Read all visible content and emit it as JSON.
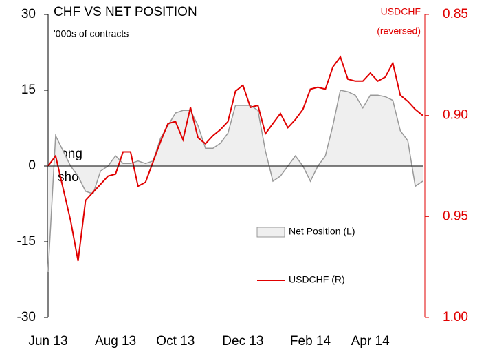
{
  "chart_data": {
    "type": "line",
    "title": "CHF VS NET POSITION",
    "subtitle": "'000s of contracts",
    "y2label": [
      "USDCHF",
      "(reversed)"
    ],
    "annotations": [
      "long",
      "short"
    ],
    "categories": [
      "Jun 13",
      null,
      null,
      null,
      null,
      null,
      null,
      null,
      null,
      "Aug 13",
      null,
      null,
      null,
      null,
      null,
      null,
      null,
      "Oct 13",
      null,
      null,
      null,
      null,
      null,
      null,
      null,
      null,
      "Dec 13",
      null,
      null,
      null,
      null,
      null,
      null,
      null,
      null,
      "Feb 14",
      null,
      null,
      null,
      null,
      null,
      null,
      null,
      "Apr 14",
      null,
      null,
      null,
      null,
      null,
      null,
      null
    ],
    "series": [
      {
        "name": "Net Position (L)",
        "color": "#999999",
        "fill": "#efefef",
        "axis": "y",
        "values": [
          -21,
          6,
          3,
          0,
          -2,
          -5,
          -5.5,
          -1,
          0,
          2,
          0.5,
          0.5,
          1,
          0.5,
          1,
          5.5,
          8,
          10.5,
          11,
          11,
          8,
          3.5,
          3.5,
          4.5,
          6.5,
          12,
          12,
          12,
          11,
          3,
          -3,
          -2,
          0,
          2,
          0,
          -3,
          0,
          2,
          8,
          15,
          14.7,
          14,
          11.5,
          14,
          14,
          13.7,
          13,
          7,
          5,
          -4,
          -3
        ]
      },
      {
        "name": "USDCHF (R)",
        "color": "#e00000",
        "axis": "y2",
        "values": [
          0.925,
          0.92,
          0.936,
          0.952,
          0.972,
          0.942,
          0.938,
          0.934,
          0.93,
          0.929,
          0.918,
          0.918,
          0.935,
          0.933,
          0.923,
          0.913,
          0.904,
          0.903,
          0.912,
          0.896,
          0.911,
          0.914,
          0.91,
          0.907,
          0.903,
          0.888,
          0.885,
          0.896,
          0.895,
          0.909,
          0.904,
          0.899,
          0.906,
          0.902,
          0.897,
          0.887,
          0.886,
          0.887,
          0.876,
          0.871,
          0.882,
          0.883,
          0.883,
          0.879,
          0.883,
          0.881,
          0.874,
          0.89,
          0.893,
          0.897,
          0.9
        ]
      }
    ],
    "ylim": [
      -30,
      30
    ],
    "yticks": [
      -30,
      -15,
      0,
      15,
      30
    ],
    "y2lim": [
      0.85,
      1.0
    ],
    "y2_reversed": true,
    "y2ticks": [
      0.85,
      {
        "value": 0.9,
        "label": "0.90"
      },
      0.95,
      {
        "value": 1.0,
        "label": "1.00"
      }
    ],
    "grid": false
  }
}
